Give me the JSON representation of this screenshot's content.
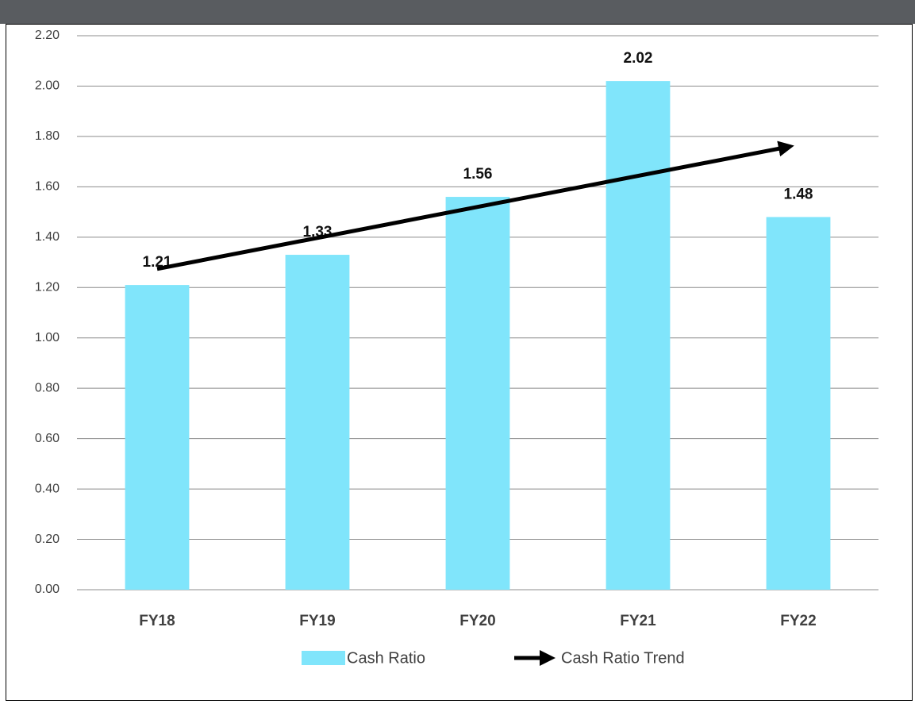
{
  "chart_data": {
    "type": "bar",
    "categories": [
      "FY18",
      "FY19",
      "FY20",
      "FY21",
      "FY22"
    ],
    "series": [
      {
        "name": "Cash Ratio",
        "color": "#80e5fb",
        "values": [
          1.21,
          1.33,
          1.56,
          2.02,
          1.48
        ]
      }
    ],
    "trendline": {
      "name": "Cash Ratio Trend",
      "color": "#000000"
    },
    "ylim": [
      0,
      2.2
    ],
    "yticks": [
      {
        "value": 0,
        "label": "0.00"
      },
      {
        "value": 0.2,
        "label": "0.20"
      },
      {
        "value": 0.4,
        "label": "0.40"
      },
      {
        "value": 0.6,
        "label": "0.60"
      },
      {
        "value": 0.8,
        "label": "0.80"
      },
      {
        "value": 1,
        "label": "1.00"
      },
      {
        "value": 1.2,
        "label": "1.20"
      },
      {
        "value": 1.4,
        "label": "1.40"
      },
      {
        "value": 1.6,
        "label": "1.60"
      },
      {
        "value": 1.8,
        "label": "1.80"
      },
      {
        "value": 2,
        "label": "2.00"
      },
      {
        "value": 2.2,
        "label": "2.20"
      }
    ],
    "grid": true,
    "legend": "bottom"
  }
}
